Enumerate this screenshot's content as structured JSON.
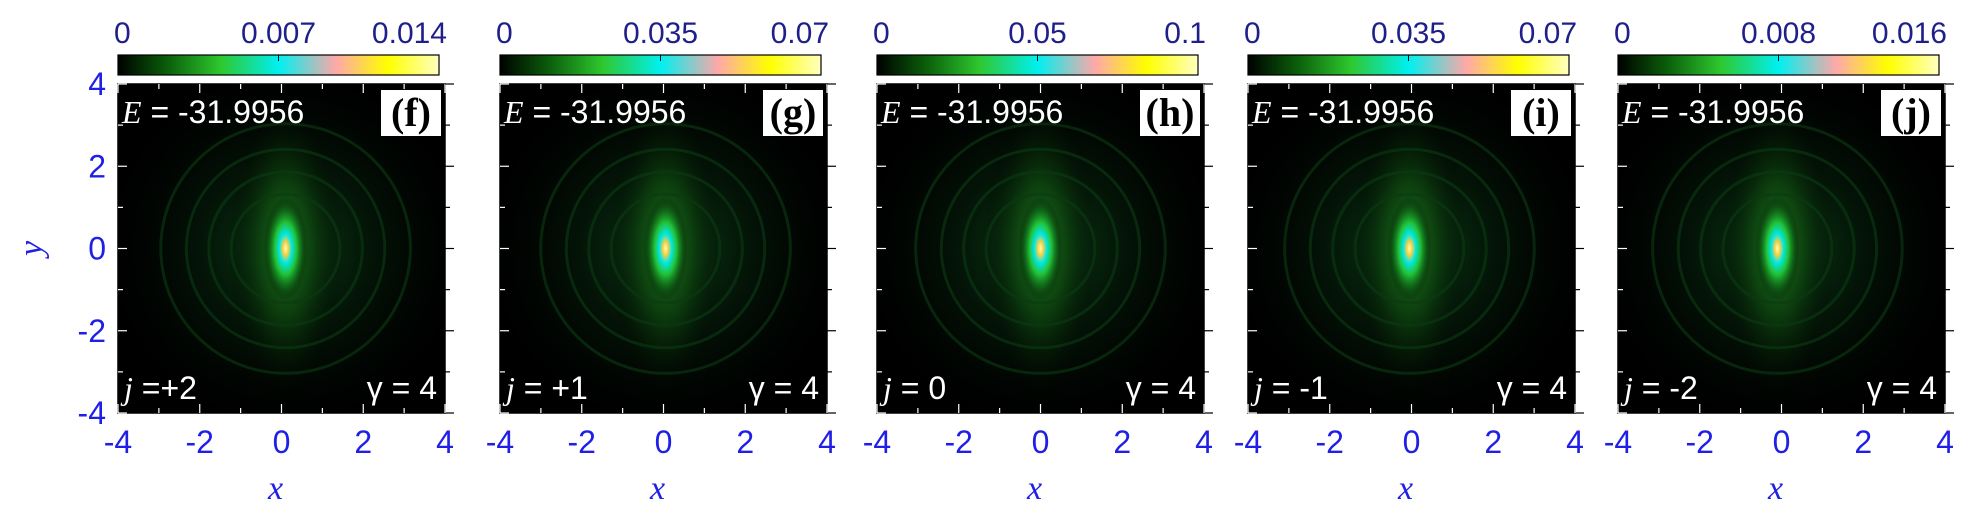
{
  "chart_data": [
    {
      "type": "heatmap",
      "panel_label": "(f)",
      "colorbar": {
        "ticks": [
          "0",
          "0.007",
          "0.014"
        ],
        "range": [
          0,
          0.014
        ]
      },
      "energy_text": "E = -31.9956",
      "j_text": "j =+2",
      "gamma_text": "γ = 4",
      "x_ticks": [
        "-4",
        "-2",
        "0",
        "2",
        "4"
      ],
      "y_ticks": [
        "4",
        "2",
        "0",
        "-2",
        "-4"
      ],
      "xlim": [
        -4,
        4
      ],
      "ylim": [
        -4,
        4
      ],
      "xlabel": "x",
      "ylabel": "y",
      "peak_center": [
        0.1,
        0.0
      ]
    },
    {
      "type": "heatmap",
      "panel_label": "(g)",
      "colorbar": {
        "ticks": [
          "0",
          "0.035",
          "0.07"
        ],
        "range": [
          0,
          0.07
        ]
      },
      "energy_text": "E = -31.9956",
      "j_text": "j = +1",
      "gamma_text": "γ = 4",
      "x_ticks": [
        "-4",
        "-2",
        "0",
        "2",
        "4"
      ],
      "xlim": [
        -4,
        4
      ],
      "ylim": [
        -4,
        4
      ],
      "xlabel": "x",
      "peak_center": [
        0.05,
        0.0
      ]
    },
    {
      "type": "heatmap",
      "panel_label": "(h)",
      "colorbar": {
        "ticks": [
          "0",
          "0.05",
          "0.1"
        ],
        "range": [
          0,
          0.1
        ]
      },
      "energy_text": "E = -31.9956",
      "j_text": "j = 0",
      "gamma_text": "γ = 4",
      "x_ticks": [
        "-4",
        "-2",
        "0",
        "2",
        "4"
      ],
      "xlim": [
        -4,
        4
      ],
      "ylim": [
        -4,
        4
      ],
      "xlabel": "x",
      "peak_center": [
        0.0,
        0.0
      ]
    },
    {
      "type": "heatmap",
      "panel_label": "(i)",
      "colorbar": {
        "ticks": [
          "0",
          "0.035",
          "0.07"
        ],
        "range": [
          0,
          0.07
        ]
      },
      "energy_text": "E = -31.9956",
      "j_text": "j = -1",
      "gamma_text": "γ = 4",
      "x_ticks": [
        "-4",
        "-2",
        "0",
        "2",
        "4"
      ],
      "xlim": [
        -4,
        4
      ],
      "ylim": [
        -4,
        4
      ],
      "xlabel": "x",
      "peak_center": [
        -0.05,
        0.0
      ]
    },
    {
      "type": "heatmap",
      "panel_label": "(j)",
      "colorbar": {
        "ticks": [
          "0",
          "0.008",
          "0.016"
        ],
        "range": [
          0,
          0.016
        ]
      },
      "energy_text": "E = -31.9956",
      "j_text": "j = -2",
      "gamma_text": "γ = 4",
      "x_ticks": [
        "-4",
        "-2",
        "0",
        "2",
        "4"
      ],
      "xlim": [
        -4,
        4
      ],
      "ylim": [
        -4,
        4
      ],
      "xlabel": "x",
      "peak_center": [
        -0.1,
        0.0
      ]
    }
  ],
  "colormap": [
    "#000000",
    "#0a5c0a",
    "#2ec82e",
    "#00f0f0",
    "#ffa8a8",
    "#ffff00",
    "#ffffc0"
  ]
}
